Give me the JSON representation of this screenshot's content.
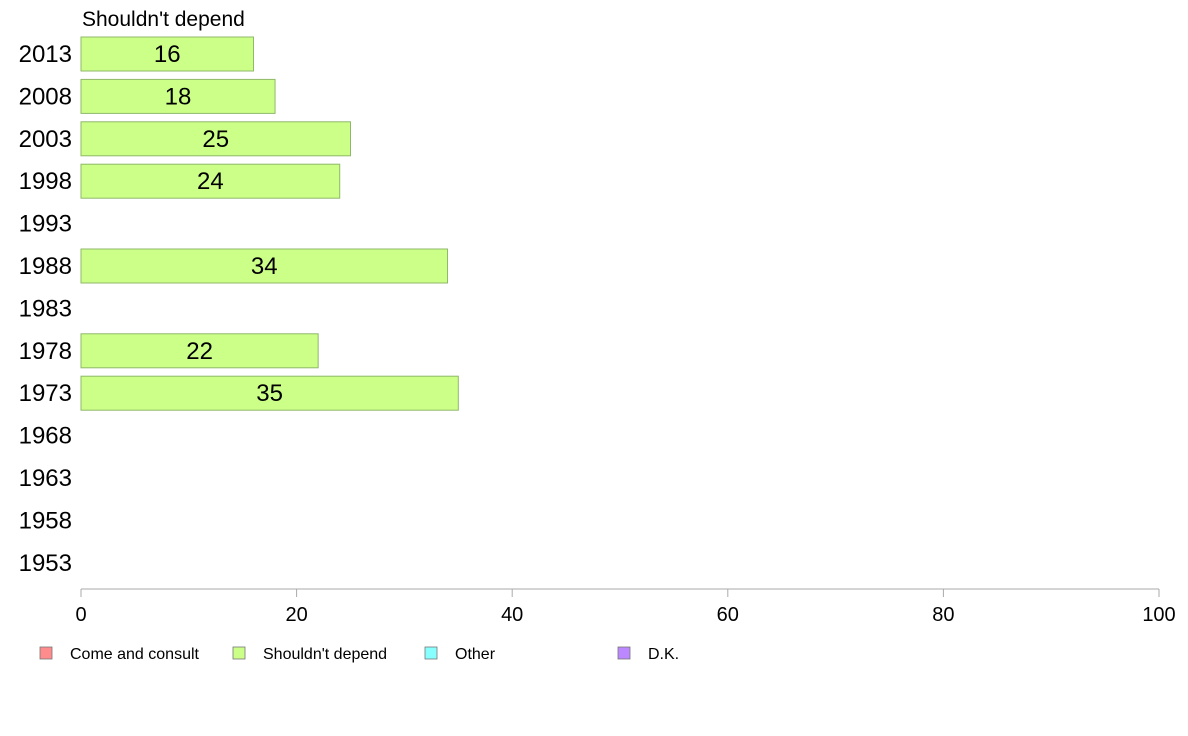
{
  "chart_data": {
    "type": "bar",
    "orientation": "horizontal",
    "title": "Shouldn't depend",
    "categories": [
      "2013",
      "2008",
      "2003",
      "1998",
      "1993",
      "1988",
      "1983",
      "1978",
      "1973",
      "1968",
      "1963",
      "1958",
      "1953"
    ],
    "series": [
      {
        "name": "Shouldn't depend",
        "color": "#ccff88",
        "values": [
          16,
          18,
          25,
          24,
          null,
          34,
          null,
          22,
          35,
          null,
          null,
          null,
          null
        ]
      }
    ],
    "xlim": [
      0,
      100
    ],
    "xticks": [
      0,
      20,
      40,
      60,
      80,
      100
    ],
    "grid": false,
    "legend_position": "bottom",
    "legend": [
      {
        "label": "Come and consult",
        "color": "#ff8c8c"
      },
      {
        "label": "Shouldn't depend",
        "color": "#ccff88"
      },
      {
        "label": "Other",
        "color": "#88ffff"
      },
      {
        "label": "D.K.",
        "color": "#bb88ff"
      }
    ]
  }
}
